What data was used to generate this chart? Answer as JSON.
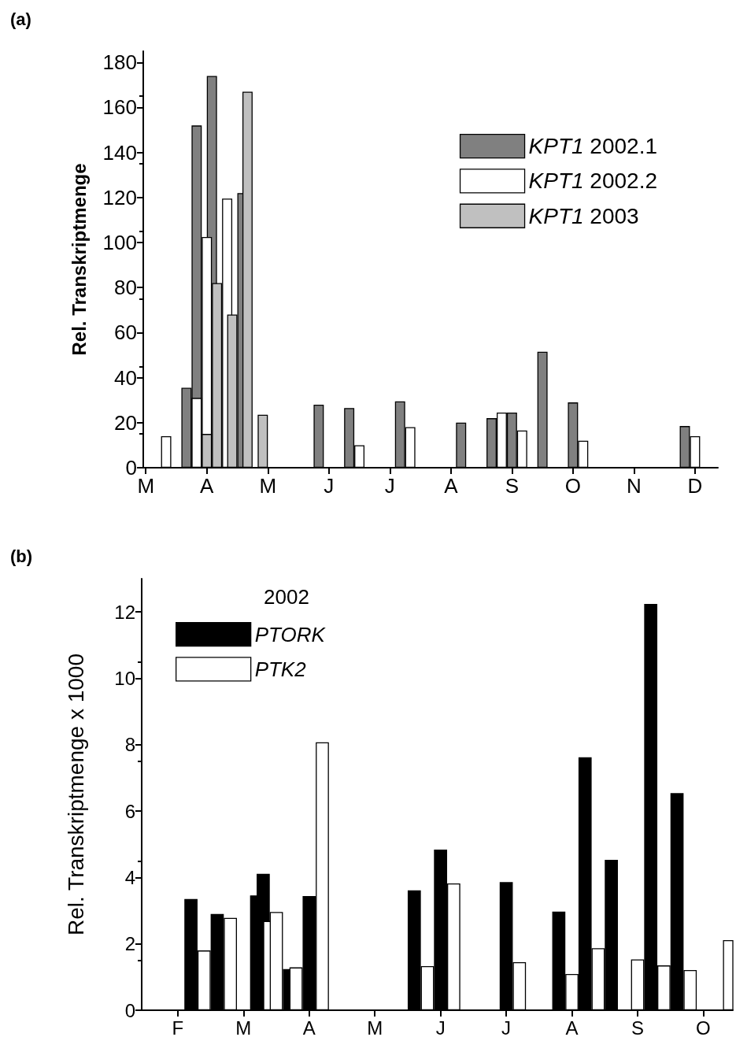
{
  "chart_data": [
    {
      "type": "bar",
      "title": "(a)",
      "ylabel": "Rel. Transkriptmenge",
      "legend": "right",
      "categories": [
        "M",
        null,
        null,
        null,
        null,
        null,
        null,
        null,
        null,
        null,
        null,
        null,
        "A",
        null,
        null,
        null,
        null,
        null,
        null,
        null,
        null,
        null,
        null,
        null,
        "M",
        null,
        null,
        null,
        null,
        null,
        null,
        null,
        null,
        null,
        null,
        null,
        "J",
        null,
        null,
        null,
        null,
        null,
        null,
        null,
        null,
        null,
        null,
        null,
        "J",
        null,
        null,
        null,
        null,
        null,
        null,
        null,
        null,
        null,
        null,
        null,
        "A",
        null,
        null,
        null,
        null,
        null,
        null,
        null,
        null,
        null,
        null,
        null,
        "S",
        null,
        null,
        null,
        null,
        null,
        null,
        null,
        null,
        null,
        null,
        null,
        "O",
        null,
        null,
        null,
        null,
        null,
        null,
        null,
        null,
        null,
        null,
        null,
        "N",
        null,
        null,
        null,
        null,
        null,
        null,
        null,
        null,
        null,
        null,
        null,
        "D",
        null,
        null,
        null,
        null
      ],
      "ylim": [
        0,
        185
      ],
      "yticks": [
        0,
        20,
        40,
        60,
        80,
        100,
        120,
        140,
        160,
        180
      ],
      "series": [
        {
          "name": "KPT1 2002.1",
          "color": "#808080",
          "values": [
            null,
            null,
            null,
            null,
            null,
            null,
            null,
            null,
            35.5,
            null,
            152,
            null,
            null,
            174,
            null,
            null,
            null,
            null,
            null,
            122,
            null,
            null,
            null,
            null,
            null,
            null,
            null,
            null,
            null,
            null,
            null,
            null,
            null,
            null,
            28,
            null,
            null,
            null,
            null,
            null,
            26.5,
            null,
            null,
            null,
            null,
            null,
            null,
            null,
            null,
            null,
            29.5,
            null,
            null,
            null,
            null,
            null,
            null,
            null,
            null,
            null,
            null,
            null,
            20,
            null,
            null,
            null,
            null,
            null,
            22,
            null,
            null,
            null,
            24.5,
            null,
            null,
            null,
            null,
            null,
            51.5,
            null,
            null,
            null,
            null,
            null,
            29,
            null,
            null,
            null,
            null,
            null,
            null,
            null,
            null,
            null,
            null,
            null,
            null,
            null,
            null,
            null,
            null,
            null,
            null,
            null,
            null,
            null,
            18.5,
            null,
            null,
            null,
            null,
            null,
            null
          ]
        },
        {
          "name": "KPT1 2002.2",
          "color": "#ffffff",
          "values": [
            null,
            null,
            null,
            null,
            14,
            null,
            null,
            null,
            null,
            null,
            31,
            null,
            102.5,
            null,
            null,
            null,
            119.5,
            null,
            null,
            null,
            null,
            null,
            null,
            null,
            null,
            null,
            null,
            null,
            null,
            null,
            null,
            null,
            null,
            null,
            null,
            null,
            null,
            null,
            null,
            null,
            null,
            null,
            10,
            null,
            null,
            null,
            null,
            null,
            null,
            null,
            null,
            null,
            18,
            null,
            null,
            null,
            null,
            null,
            null,
            null,
            null,
            null,
            null,
            null,
            null,
            null,
            null,
            null,
            null,
            null,
            24.5,
            null,
            null,
            null,
            16.5,
            null,
            null,
            null,
            null,
            null,
            null,
            null,
            null,
            null,
            null,
            null,
            12,
            null,
            null,
            null,
            null,
            null,
            null,
            null,
            null,
            null,
            null,
            null,
            null,
            null,
            null,
            null,
            null,
            null,
            null,
            null,
            null,
            null,
            14,
            null,
            null,
            null,
            null
          ]
        },
        {
          "name": "KPT1 2003",
          "color": "#c0c0c0",
          "values": [
            null,
            null,
            null,
            null,
            null,
            null,
            null,
            null,
            null,
            null,
            null,
            null,
            15,
            null,
            82,
            null,
            null,
            68,
            null,
            null,
            167,
            null,
            null,
            23.5,
            null,
            null,
            null,
            null,
            null,
            null,
            null,
            null,
            null,
            null,
            null,
            null,
            null,
            null,
            null,
            null,
            null,
            null,
            null,
            null,
            null,
            null,
            null,
            null,
            null,
            null,
            null,
            null,
            null,
            null,
            null,
            null,
            null,
            null,
            null,
            null,
            null,
            null,
            null,
            null,
            null,
            null,
            null,
            null,
            null,
            null,
            null,
            null,
            null,
            null,
            null,
            null,
            null,
            null,
            null,
            null,
            null,
            null,
            null,
            null,
            null,
            null,
            null,
            null,
            null,
            null,
            null,
            null,
            null,
            null,
            null,
            null,
            null,
            null,
            null,
            null,
            null,
            null,
            null,
            null,
            null,
            null,
            null,
            null,
            null,
            null,
            null,
            null,
            null
          ]
        }
      ]
    },
    {
      "type": "bar",
      "title": "(b)",
      "ylabel": "Rel. Transkriptmenge x 1000",
      "legend": "top left",
      "legend_title": "2002",
      "categories": [
        null,
        null,
        null,
        null,
        null,
        "F",
        null,
        null,
        null,
        null,
        null,
        null,
        null,
        null,
        null,
        "M",
        null,
        null,
        null,
        null,
        null,
        null,
        null,
        null,
        null,
        "A",
        null,
        null,
        null,
        null,
        null,
        null,
        null,
        null,
        null,
        "M",
        null,
        null,
        null,
        null,
        null,
        null,
        null,
        null,
        null,
        "J",
        null,
        null,
        null,
        null,
        null,
        null,
        null,
        null,
        null,
        "J",
        null,
        null,
        null,
        null,
        null,
        null,
        null,
        null,
        null,
        "A",
        null,
        null,
        null,
        null,
        null,
        null,
        null,
        null,
        null,
        "S",
        null,
        null,
        null,
        null,
        null,
        null,
        null,
        null,
        null,
        "O",
        null,
        null,
        null,
        null
      ],
      "ylim": [
        0,
        13
      ],
      "yticks": [
        0,
        2,
        4,
        6,
        8,
        10,
        12
      ],
      "series": [
        {
          "name": "PTORK",
          "color": "#000000",
          "values": [
            null,
            null,
            null,
            null,
            null,
            null,
            null,
            3.35,
            null,
            null,
            null,
            2.9,
            null,
            null,
            null,
            null,
            null,
            3.46,
            4.11,
            null,
            null,
            null,
            1.24,
            null,
            null,
            3.44,
            null,
            null,
            null,
            null,
            null,
            null,
            null,
            null,
            null,
            null,
            null,
            null,
            null,
            null,
            null,
            3.61,
            null,
            null,
            null,
            4.84,
            null,
            null,
            null,
            null,
            null,
            null,
            null,
            null,
            null,
            3.86,
            null,
            null,
            null,
            null,
            null,
            null,
            null,
            2.97,
            null,
            null,
            null,
            7.62,
            null,
            null,
            null,
            4.53,
            null,
            null,
            null,
            null,
            null,
            12.24,
            null,
            null,
            null,
            6.54,
            null,
            null,
            null,
            null,
            null,
            null,
            null,
            null
          ]
        },
        {
          "name": "PTK2",
          "color": "#ffffff",
          "values": [
            null,
            null,
            null,
            null,
            null,
            null,
            null,
            null,
            null,
            1.8,
            null,
            null,
            null,
            2.78,
            null,
            null,
            null,
            null,
            null,
            2.69,
            2.96,
            null,
            null,
            1.29,
            null,
            null,
            null,
            8.07,
            null,
            null,
            null,
            null,
            null,
            null,
            null,
            null,
            null,
            null,
            null,
            null,
            null,
            null,
            null,
            1.33,
            null,
            null,
            null,
            3.82,
            null,
            null,
            null,
            null,
            null,
            null,
            null,
            null,
            null,
            1.45,
            null,
            null,
            null,
            null,
            null,
            null,
            null,
            1.09,
            null,
            null,
            null,
            1.87,
            null,
            null,
            null,
            null,
            null,
            1.53,
            null,
            null,
            null,
            1.35,
            null,
            null,
            null,
            1.21,
            null,
            null,
            null,
            null,
            null,
            2.11
          ]
        }
      ]
    }
  ]
}
